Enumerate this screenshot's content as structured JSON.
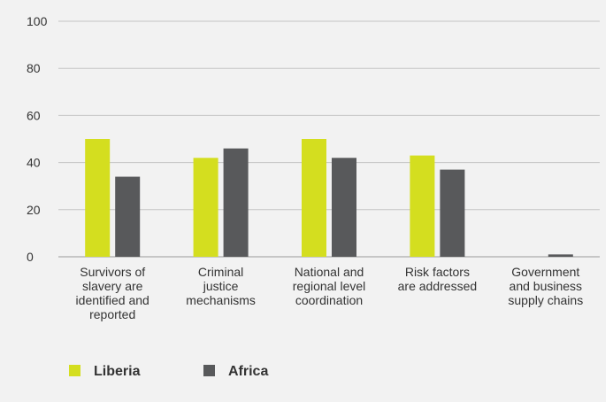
{
  "chart_data": {
    "type": "bar",
    "categories": [
      [
        "Survivors of",
        "slavery are",
        "identified and",
        "reported"
      ],
      [
        "Criminal",
        "justice",
        "mechanisms"
      ],
      [
        "National and",
        "regional level",
        "coordination"
      ],
      [
        "Risk factors",
        "are addressed"
      ],
      [
        "Government",
        "and business",
        "supply chains"
      ]
    ],
    "series": [
      {
        "name": "Liberia",
        "color": "#d4de1f",
        "values": [
          50,
          42,
          50,
          43,
          0
        ]
      },
      {
        "name": "Africa",
        "color": "#58595b",
        "values": [
          34,
          46,
          42,
          37,
          1
        ]
      }
    ],
    "ylim": [
      0,
      100
    ],
    "yticks": [
      0,
      20,
      40,
      60,
      80,
      100
    ],
    "grid": true,
    "legend": "bottom-left"
  }
}
